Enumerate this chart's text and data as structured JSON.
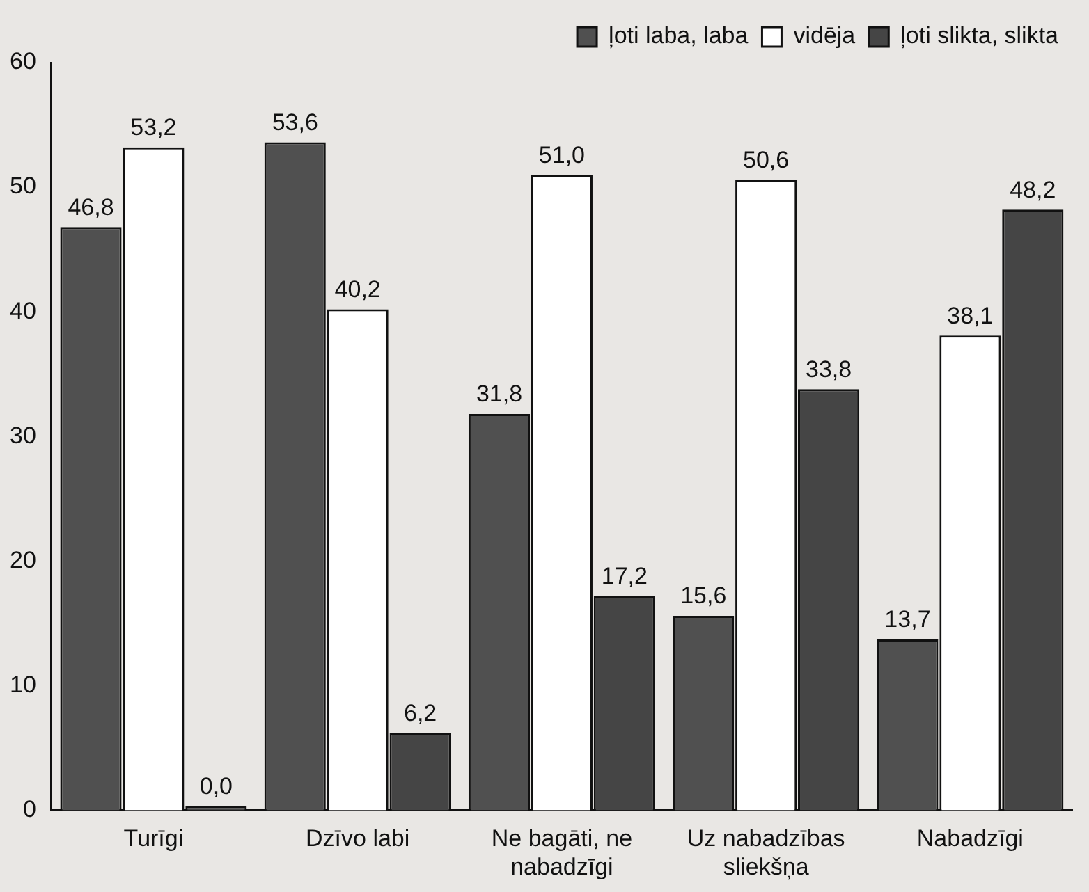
{
  "chart_data": {
    "type": "bar",
    "categories": [
      "Turīgi",
      "Dzīvo labi",
      "Ne bagāti, ne nabadzīgi",
      "Uz nabadzības sliekšņa",
      "Nabadzīgi"
    ],
    "series": [
      {
        "name": "ļoti laba, laba",
        "color": "#505050",
        "values": [
          46.8,
          53.6,
          31.8,
          15.6,
          13.7
        ],
        "value_labels": [
          "46,8",
          "53,6",
          "31,8",
          "15,6",
          "13,7"
        ]
      },
      {
        "name": "vidēja",
        "color": "#ffffff",
        "values": [
          53.2,
          40.2,
          51.0,
          50.6,
          38.1
        ],
        "value_labels": [
          "53,2",
          "40,2",
          "51,0",
          "50,6",
          "38,1"
        ]
      },
      {
        "name": "ļoti slikta, slikta",
        "color": "#454545",
        "values": [
          0.0,
          6.2,
          17.2,
          33.8,
          48.2
        ],
        "value_labels": [
          "0,0",
          "6,2",
          "17,2",
          "33,8",
          "48,2"
        ]
      }
    ],
    "ylim": [
      0,
      60
    ],
    "yticks": [
      0,
      10,
      20,
      30,
      40,
      50,
      60
    ],
    "grid": false,
    "legend": "top right"
  }
}
